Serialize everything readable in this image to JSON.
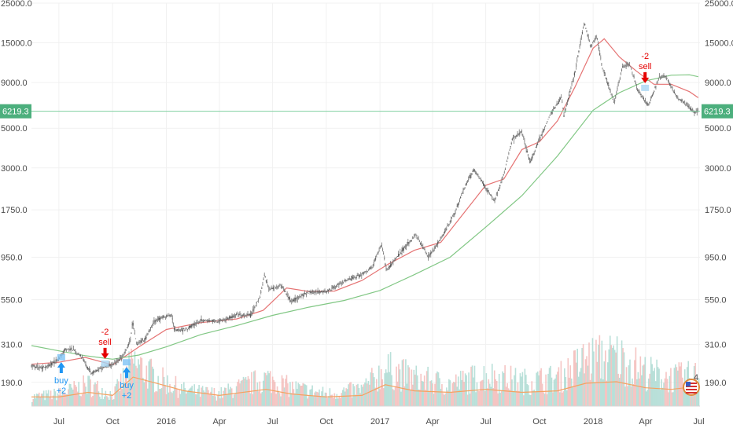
{
  "chart_data": {
    "type": "line",
    "scale": "log",
    "grid": true,
    "y_ticks": [
      190,
      310,
      550,
      950,
      1750,
      3000,
      5000,
      9000,
      15000,
      25000
    ],
    "y_tick_labels": [
      "190.0",
      "310.0",
      "550.0",
      "950.0",
      "1750.0",
      "3000.0",
      "5000.0",
      "9000.0",
      "15000.0",
      "25000.0"
    ],
    "ylim": [
      140,
      25000
    ],
    "xlim": [
      "2015-05-15",
      "2018-07-03"
    ],
    "x_ticks": [
      {
        "label": "Jul",
        "date": "2015-07-01"
      },
      {
        "label": "Oct",
        "date": "2015-10-01"
      },
      {
        "label": "2016",
        "date": "2016-01-01"
      },
      {
        "label": "Apr",
        "date": "2016-04-01"
      },
      {
        "label": "Jul",
        "date": "2016-07-01"
      },
      {
        "label": "Oct",
        "date": "2016-10-01"
      },
      {
        "label": "2017",
        "date": "2017-01-01"
      },
      {
        "label": "Apr",
        "date": "2017-04-01"
      },
      {
        "label": "Jul",
        "date": "2017-07-01"
      },
      {
        "label": "Oct",
        "date": "2017-10-01"
      },
      {
        "label": "2018",
        "date": "2018-01-01"
      },
      {
        "label": "Apr",
        "date": "2018-04-01"
      },
      {
        "label": "Jul",
        "date": "2018-07-01"
      }
    ],
    "current_price": 6219.3,
    "current_price_label": "6219.3",
    "series": [
      {
        "color": "#6b6b6b",
        "points": [
          [
            "2015-05-15",
            237
          ],
          [
            "2015-06-01",
            228
          ],
          [
            "2015-06-15",
            236
          ],
          [
            "2015-07-01",
            258
          ],
          [
            "2015-07-12",
            292
          ],
          [
            "2015-07-25",
            288
          ],
          [
            "2015-08-10",
            265
          ],
          [
            "2015-08-18",
            232
          ],
          [
            "2015-08-25",
            213
          ],
          [
            "2015-09-15",
            230
          ],
          [
            "2015-10-01",
            238
          ],
          [
            "2015-10-20",
            268
          ],
          [
            "2015-11-01",
            330
          ],
          [
            "2015-11-04",
            420
          ],
          [
            "2015-11-11",
            310
          ],
          [
            "2015-11-25",
            330
          ],
          [
            "2015-12-10",
            410
          ],
          [
            "2015-12-25",
            440
          ],
          [
            "2016-01-10",
            450
          ],
          [
            "2016-01-15",
            375
          ],
          [
            "2016-02-01",
            375
          ],
          [
            "2016-03-01",
            420
          ],
          [
            "2016-04-01",
            418
          ],
          [
            "2016-05-01",
            450
          ],
          [
            "2016-05-25",
            450
          ],
          [
            "2016-06-10",
            580
          ],
          [
            "2016-06-17",
            760
          ],
          [
            "2016-06-25",
            630
          ],
          [
            "2016-07-15",
            665
          ],
          [
            "2016-08-02",
            540
          ],
          [
            "2016-09-01",
            605
          ],
          [
            "2016-10-01",
            610
          ],
          [
            "2016-11-01",
            700
          ],
          [
            "2016-12-01",
            760
          ],
          [
            "2016-12-20",
            850
          ],
          [
            "2017-01-04",
            1130
          ],
          [
            "2017-01-12",
            800
          ],
          [
            "2017-02-01",
            975
          ],
          [
            "2017-03-03",
            1270
          ],
          [
            "2017-03-25",
            950
          ],
          [
            "2017-04-15",
            1200
          ],
          [
            "2017-05-10",
            1700
          ],
          [
            "2017-05-25",
            2300
          ],
          [
            "2017-06-11",
            2950
          ],
          [
            "2017-06-25",
            2500
          ],
          [
            "2017-07-16",
            1950
          ],
          [
            "2017-08-01",
            2750
          ],
          [
            "2017-08-15",
            4300
          ],
          [
            "2017-09-01",
            4800
          ],
          [
            "2017-09-15",
            3200
          ],
          [
            "2017-10-01",
            4350
          ],
          [
            "2017-10-20",
            6000
          ],
          [
            "2017-11-08",
            7400
          ],
          [
            "2017-11-12",
            5900
          ],
          [
            "2017-11-30",
            10000
          ],
          [
            "2017-12-17",
            19500
          ],
          [
            "2017-12-28",
            14200
          ],
          [
            "2018-01-07",
            16500
          ],
          [
            "2018-01-17",
            10900
          ],
          [
            "2018-02-06",
            6900
          ],
          [
            "2018-02-20",
            11000
          ],
          [
            "2018-03-05",
            11400
          ],
          [
            "2018-03-18",
            8200
          ],
          [
            "2018-04-06",
            6700
          ],
          [
            "2018-04-24",
            9600
          ],
          [
            "2018-05-05",
            9800
          ],
          [
            "2018-05-25",
            7400
          ],
          [
            "2018-06-10",
            6800
          ],
          [
            "2018-06-24",
            6100
          ],
          [
            "2018-06-30",
            6219
          ]
        ]
      },
      {
        "color": "#e57373",
        "points": [
          [
            "2015-05-15",
            240
          ],
          [
            "2015-07-01",
            246
          ],
          [
            "2015-08-15",
            262
          ],
          [
            "2015-10-01",
            238
          ],
          [
            "2015-11-15",
            300
          ],
          [
            "2016-01-01",
            375
          ],
          [
            "2016-03-01",
            410
          ],
          [
            "2016-05-01",
            430
          ],
          [
            "2016-06-15",
            480
          ],
          [
            "2016-07-25",
            640
          ],
          [
            "2016-09-01",
            612
          ],
          [
            "2016-10-15",
            615
          ],
          [
            "2016-12-01",
            705
          ],
          [
            "2017-01-15",
            870
          ],
          [
            "2017-03-01",
            1040
          ],
          [
            "2017-04-15",
            1150
          ],
          [
            "2017-06-01",
            1800
          ],
          [
            "2017-07-01",
            2400
          ],
          [
            "2017-08-01",
            2600
          ],
          [
            "2017-09-01",
            3800
          ],
          [
            "2017-10-01",
            4200
          ],
          [
            "2017-11-01",
            5500
          ],
          [
            "2017-12-01",
            8500
          ],
          [
            "2018-01-01",
            14000
          ],
          [
            "2018-01-20",
            15800
          ],
          [
            "2018-02-15",
            12500
          ],
          [
            "2018-03-15",
            10500
          ],
          [
            "2018-04-15",
            8800
          ],
          [
            "2018-05-15",
            8800
          ],
          [
            "2018-06-15",
            8000
          ],
          [
            "2018-06-30",
            7400
          ]
        ]
      },
      {
        "color": "#81c784",
        "points": [
          [
            "2015-05-15",
            305
          ],
          [
            "2015-07-01",
            285
          ],
          [
            "2015-08-15",
            268
          ],
          [
            "2015-10-01",
            256
          ],
          [
            "2015-11-15",
            270
          ],
          [
            "2016-01-01",
            300
          ],
          [
            "2016-03-01",
            352
          ],
          [
            "2016-05-01",
            395
          ],
          [
            "2016-07-01",
            450
          ],
          [
            "2016-09-01",
            500
          ],
          [
            "2016-11-01",
            545
          ],
          [
            "2017-01-01",
            620
          ],
          [
            "2017-03-01",
            760
          ],
          [
            "2017-05-01",
            950
          ],
          [
            "2017-07-01",
            1400
          ],
          [
            "2017-09-01",
            2100
          ],
          [
            "2017-11-01",
            3500
          ],
          [
            "2018-01-01",
            6300
          ],
          [
            "2018-02-15",
            7900
          ],
          [
            "2018-04-01",
            9200
          ],
          [
            "2018-05-15",
            9900
          ],
          [
            "2018-06-15",
            9950
          ],
          [
            "2018-06-30",
            9700
          ]
        ]
      },
      {
        "color": "#f4a261",
        "points": [
          [
            "2015-05-15",
            0.12
          ],
          [
            "2015-07-01",
            0.12
          ],
          [
            "2015-08-20",
            0.18
          ],
          [
            "2015-10-01",
            0.14
          ],
          [
            "2015-11-05",
            0.38
          ],
          [
            "2015-12-15",
            0.3
          ],
          [
            "2016-02-01",
            0.2
          ],
          [
            "2016-04-01",
            0.14
          ],
          [
            "2016-06-20",
            0.22
          ],
          [
            "2016-08-01",
            0.16
          ],
          [
            "2016-10-01",
            0.12
          ],
          [
            "2016-12-01",
            0.14
          ],
          [
            "2017-01-10",
            0.28
          ],
          [
            "2017-03-01",
            0.2
          ],
          [
            "2017-05-01",
            0.18
          ],
          [
            "2017-07-01",
            0.22
          ],
          [
            "2017-09-01",
            0.18
          ],
          [
            "2017-11-01",
            0.2
          ],
          [
            "2017-12-20",
            0.3
          ],
          [
            "2018-02-10",
            0.32
          ],
          [
            "2018-04-01",
            0.24
          ],
          [
            "2018-05-15",
            0.22
          ],
          [
            "2018-06-30",
            0.26
          ]
        ]
      }
    ],
    "volume_profile": [
      [
        "2015-05-15",
        0.15
      ],
      [
        "2015-07-01",
        0.2
      ],
      [
        "2015-08-20",
        0.35
      ],
      [
        "2015-10-01",
        0.18
      ],
      [
        "2015-11-05",
        0.7
      ],
      [
        "2015-12-15",
        0.45
      ],
      [
        "2016-02-01",
        0.25
      ],
      [
        "2016-04-01",
        0.2
      ],
      [
        "2016-06-20",
        0.45
      ],
      [
        "2016-08-01",
        0.3
      ],
      [
        "2016-10-01",
        0.2
      ],
      [
        "2016-12-01",
        0.28
      ],
      [
        "2017-01-10",
        0.6
      ],
      [
        "2017-03-01",
        0.45
      ],
      [
        "2017-05-01",
        0.35
      ],
      [
        "2017-07-01",
        0.5
      ],
      [
        "2017-09-01",
        0.4
      ],
      [
        "2017-11-01",
        0.45
      ],
      [
        "2017-12-20",
        0.75
      ],
      [
        "2018-02-10",
        0.8
      ],
      [
        "2018-04-01",
        0.55
      ],
      [
        "2018-05-15",
        0.45
      ],
      [
        "2018-06-30",
        0.5
      ]
    ],
    "signals": [
      {
        "kind": "buy",
        "date": "2015-07-05",
        "price": 262,
        "label": "buy",
        "qty": "+2"
      },
      {
        "kind": "sell",
        "date": "2015-09-18",
        "price": 242,
        "label": "sell",
        "qty": "-2"
      },
      {
        "kind": "buy",
        "date": "2015-10-25",
        "price": 246,
        "label": "buy",
        "qty": "+2"
      },
      {
        "kind": "sell",
        "date": "2018-03-31",
        "price": 8400,
        "label": "sell",
        "qty": "-2"
      }
    ],
    "badge": {
      "text": "4",
      "icon": "us-flag-icon"
    },
    "colors": {
      "background": "#ffffff",
      "grid": "#f1f1f1",
      "up": "#26a69a",
      "down": "#ef5350",
      "buy": "#2196f3",
      "sell": "#e50000",
      "price_line": "#7fcfa0",
      "price_label_bg": "#4caf7d"
    }
  }
}
